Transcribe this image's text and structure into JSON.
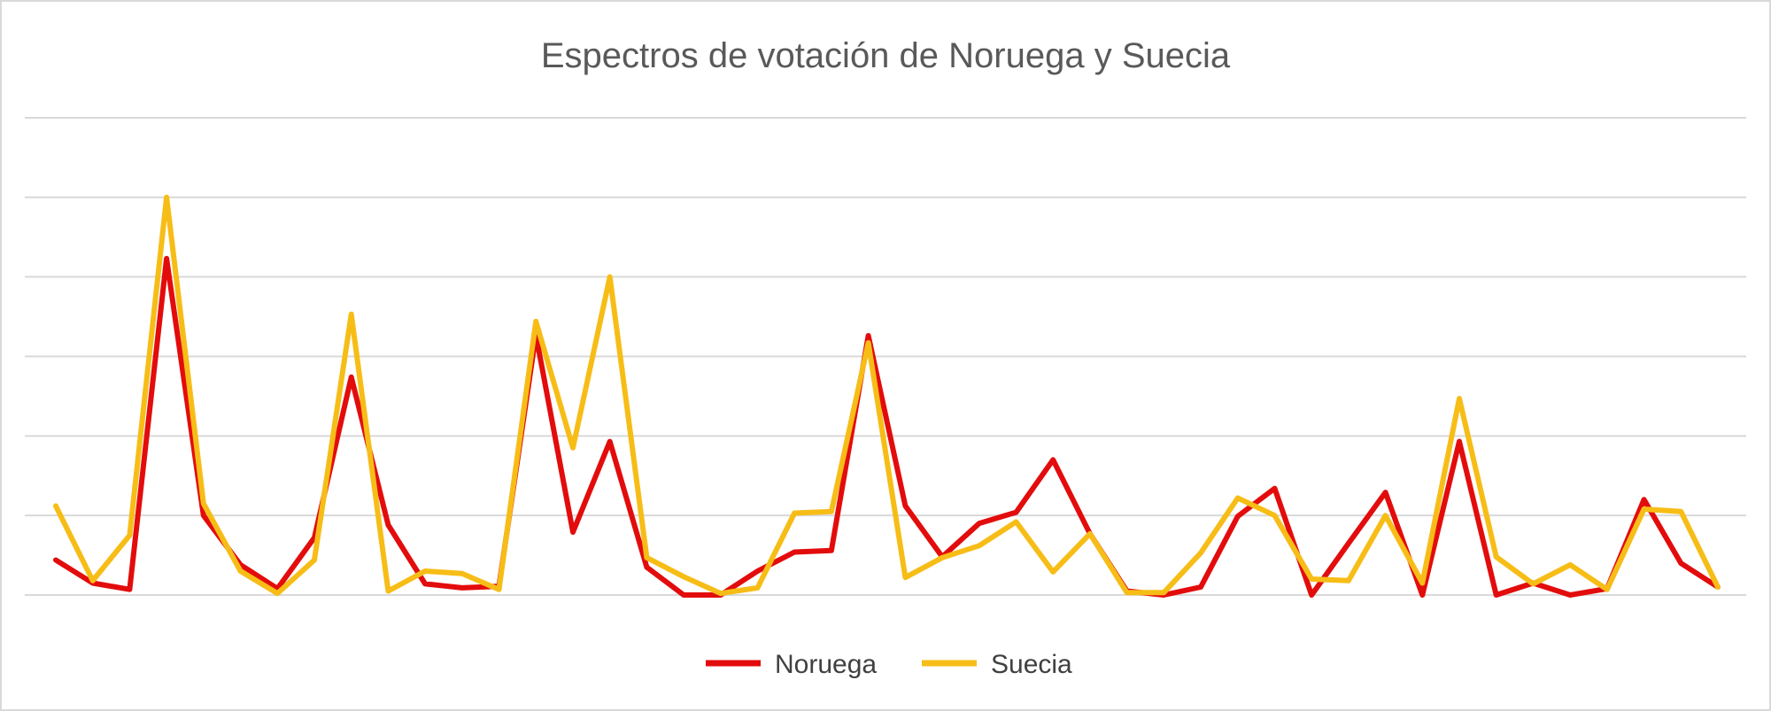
{
  "chart_data": {
    "type": "line",
    "title": "Espectros de votación de Noruega y Suecia",
    "xlabel": "",
    "ylabel": "",
    "ylim": [
      0,
      6
    ],
    "gridlines": [
      0,
      1,
      2,
      3,
      4,
      5,
      6
    ],
    "axis_labels_visible": false,
    "grid": true,
    "legend_position": "bottom",
    "x": [
      1,
      2,
      3,
      4,
      5,
      6,
      7,
      8,
      9,
      10,
      11,
      12,
      13,
      14,
      15,
      16,
      17,
      18,
      19,
      20,
      21,
      22,
      23,
      24,
      25,
      26,
      27,
      28,
      29,
      30,
      31,
      32,
      33,
      34,
      35,
      36,
      37,
      38,
      39,
      40,
      41,
      42,
      43,
      44,
      45,
      46
    ],
    "series": [
      {
        "name": "Noruega",
        "color": "#e30c0c",
        "values": [
          0.44,
          0.15,
          0.07,
          4.23,
          1.0,
          0.38,
          0.08,
          0.72,
          2.74,
          0.88,
          0.14,
          0.09,
          0.11,
          3.27,
          0.79,
          1.93,
          0.35,
          0.0,
          0.0,
          0.3,
          0.54,
          0.56,
          3.26,
          1.12,
          0.48,
          0.9,
          1.04,
          1.7,
          0.77,
          0.05,
          0.0,
          0.1,
          0.99,
          1.34,
          0.0,
          0.65,
          1.29,
          0.0,
          1.93,
          0.0,
          0.15,
          0.0,
          0.08,
          1.2,
          0.4,
          0.1
        ]
      },
      {
        "name": "Suecia",
        "color": "#f7bd17",
        "values": [
          1.12,
          0.18,
          0.75,
          5.0,
          1.15,
          0.3,
          0.02,
          0.44,
          3.53,
          0.05,
          0.3,
          0.27,
          0.07,
          3.44,
          1.85,
          4.0,
          0.47,
          0.23,
          0.02,
          0.09,
          1.03,
          1.05,
          3.17,
          0.22,
          0.47,
          0.62,
          0.92,
          0.29,
          0.77,
          0.03,
          0.03,
          0.53,
          1.22,
          1.0,
          0.2,
          0.18,
          1.0,
          0.15,
          2.47,
          0.48,
          0.14,
          0.38,
          0.07,
          1.08,
          1.05,
          0.1
        ]
      }
    ]
  }
}
